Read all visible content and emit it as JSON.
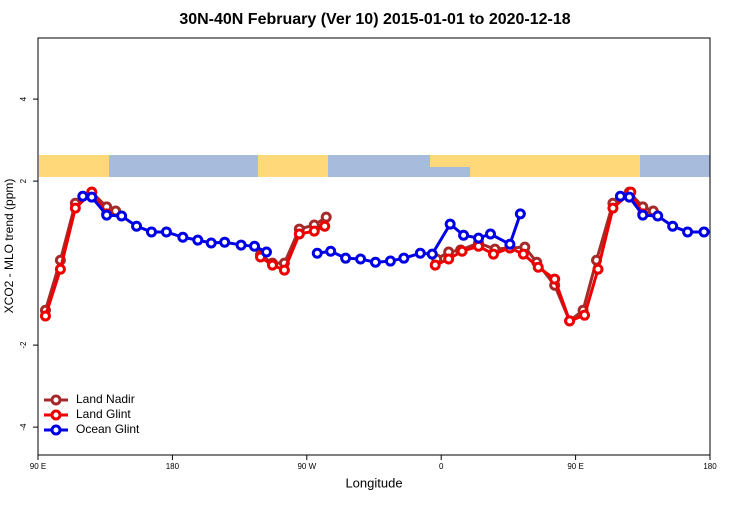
{
  "chart_data": {
    "type": "line",
    "title": "30N-40N February (Ver 10)   2015-01-01 to 2020-12-18",
    "x_label": "Longitude",
    "y_label": "XCO2 - MLO trend (ppm)",
    "xlim": [
      90,
      540
    ],
    "ylim": [
      -4.68,
      5.49
    ],
    "xticks": [
      {
        "value": 90,
        "label": "90 E"
      },
      180,
      {
        "value": 270,
        "label": "90 W"
      },
      {
        "value": 360,
        "label": "0"
      },
      {
        "value": 450,
        "label": "90 E"
      },
      {
        "value": 540,
        "label": "180"
      }
    ],
    "yticks": [
      -4,
      -2,
      2,
      4
    ],
    "legend": "bottom-left",
    "series": [
      {
        "name": "Land Nadir",
        "color": "#a52a2a",
        "x": [
          95,
          105,
          115,
          126,
          136,
          142,
          null,
          239,
          247,
          255,
          265,
          275,
          283,
          null,
          357,
          365,
          373,
          385,
          396,
          406,
          416,
          424,
          436,
          446,
          455,
          464,
          475,
          486,
          495,
          502
        ],
        "values": [
          -1.15,
          0.07,
          1.46,
          1.73,
          1.37,
          1.27,
          null,
          0.2,
          0,
          0,
          0.83,
          0.93,
          1.12,
          null,
          0.1,
          0.27,
          0.32,
          0.49,
          0.34,
          0.37,
          0.39,
          0.02,
          -0.54,
          -1.41,
          -1.15,
          0.07,
          1.46,
          1.73,
          1.37,
          1.27
        ]
      },
      {
        "name": "Land Glint",
        "color": "#ee0000",
        "x": [
          95,
          105,
          115,
          126,
          136,
          null,
          239,
          247,
          255,
          265,
          275,
          282,
          null,
          356,
          365,
          374,
          385,
          395,
          406,
          415,
          425,
          436,
          446,
          456,
          465,
          475,
          487,
          495
        ],
        "values": [
          -1.29,
          -0.15,
          1.34,
          1.73,
          1.2,
          null,
          0.15,
          -0.05,
          -0.17,
          0.71,
          0.78,
          0.9,
          null,
          -0.05,
          0.1,
          0.29,
          0.41,
          0.22,
          0.37,
          0.22,
          -0.1,
          -0.39,
          -1.41,
          -1.27,
          -0.15,
          1.34,
          1.73,
          1.2
        ]
      },
      {
        "name": "Ocean Glint",
        "color": "#0000e6",
        "x": [
          120,
          126,
          136,
          146,
          156,
          166,
          176,
          187,
          197,
          206,
          215,
          226,
          235,
          243,
          null,
          277,
          286,
          296,
          306,
          316,
          326,
          335,
          346,
          354,
          366,
          375,
          385,
          393,
          406,
          413,
          null,
          480,
          486,
          495,
          505,
          515,
          525,
          536
        ],
        "values": [
          1.63,
          1.61,
          1.17,
          1.15,
          0.9,
          0.76,
          0.76,
          0.63,
          0.56,
          0.49,
          0.51,
          0.44,
          0.41,
          0.27,
          null,
          0.24,
          0.29,
          0.12,
          0.1,
          0.02,
          0.05,
          0.12,
          0.24,
          0.22,
          0.95,
          0.68,
          0.61,
          0.71,
          0.46,
          1.2,
          null,
          1.63,
          1.61,
          1.17,
          1.15,
          0.9,
          0.76,
          0.76
        ]
      }
    ]
  }
}
